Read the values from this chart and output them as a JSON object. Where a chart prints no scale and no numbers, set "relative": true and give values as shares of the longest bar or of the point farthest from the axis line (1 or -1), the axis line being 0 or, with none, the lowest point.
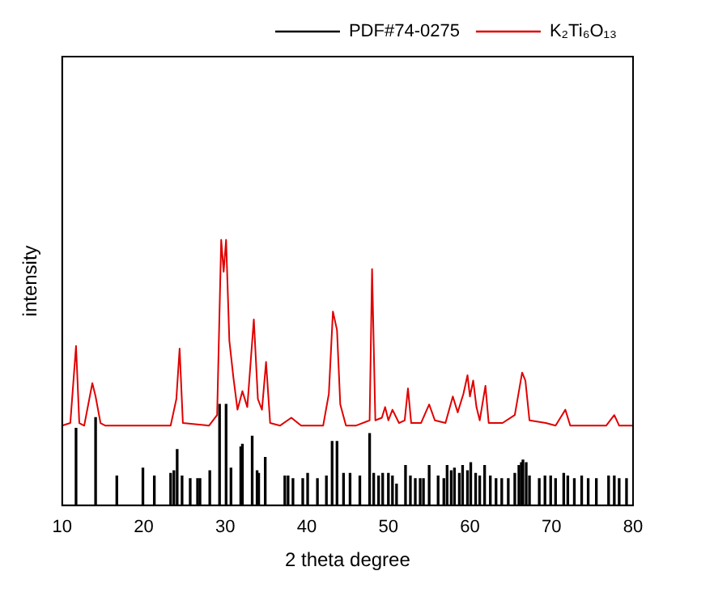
{
  "chart_data": {
    "type": "line",
    "xlabel": "2 theta degree",
    "ylabel": "intensity",
    "relative": true,
    "xlim": [
      10,
      80
    ],
    "xticks": [
      10,
      20,
      30,
      40,
      50,
      60,
      70,
      80
    ],
    "grid": false,
    "legend": "top right",
    "marker": "none",
    "series": [
      {
        "name": "PDF#74-0275",
        "type": "bar",
        "color": "#000000",
        "x": [
          11.7,
          14.1,
          16.7,
          19.9,
          21.3,
          23.3,
          23.7,
          24.1,
          24.7,
          25.7,
          26.6,
          26.9,
          28.1,
          29.3,
          30.1,
          30.7,
          31.9,
          32.1,
          33.3,
          33.9,
          34.1,
          34.9,
          37.3,
          37.7,
          38.3,
          39.5,
          40.1,
          41.3,
          42.4,
          43.1,
          43.7,
          44.5,
          45.3,
          46.5,
          47.7,
          48.2,
          48.8,
          49.3,
          50.0,
          50.5,
          51.0,
          52.1,
          52.7,
          53.3,
          53.9,
          54.3,
          55.0,
          56.1,
          56.8,
          57.2,
          57.7,
          58.1,
          58.7,
          59.1,
          59.7,
          60.1,
          60.7,
          61.2,
          61.8,
          62.5,
          63.2,
          63.9,
          64.7,
          65.5,
          66.0,
          66.3,
          66.5,
          66.9,
          67.3,
          68.5,
          69.2,
          69.9,
          70.5,
          71.5,
          72.0,
          72.8,
          73.7,
          74.5,
          75.5,
          77.0,
          77.7,
          78.3,
          79.2
        ],
        "values": [
          0.29,
          0.33,
          0.11,
          0.14,
          0.11,
          0.12,
          0.13,
          0.21,
          0.11,
          0.1,
          0.1,
          0.1,
          0.13,
          0.38,
          0.38,
          0.14,
          0.22,
          0.23,
          0.26,
          0.13,
          0.12,
          0.18,
          0.11,
          0.11,
          0.1,
          0.1,
          0.12,
          0.1,
          0.11,
          0.24,
          0.24,
          0.12,
          0.12,
          0.11,
          0.27,
          0.12,
          0.11,
          0.12,
          0.12,
          0.11,
          0.08,
          0.15,
          0.11,
          0.1,
          0.1,
          0.1,
          0.15,
          0.11,
          0.1,
          0.15,
          0.13,
          0.14,
          0.12,
          0.15,
          0.13,
          0.16,
          0.12,
          0.11,
          0.15,
          0.11,
          0.1,
          0.1,
          0.1,
          0.12,
          0.15,
          0.16,
          0.17,
          0.16,
          0.11,
          0.1,
          0.11,
          0.11,
          0.1,
          0.12,
          0.11,
          0.1,
          0.11,
          0.1,
          0.1,
          0.11,
          0.11,
          0.1,
          0.1
        ]
      },
      {
        "name": "K₂Ti₆O₁₃",
        "color": "#e00000",
        "x": [
          10.0,
          11.0,
          11.7,
          12.1,
          12.7,
          13.7,
          14.1,
          14.7,
          15.3,
          20.0,
          23.3,
          24.0,
          24.4,
          24.8,
          28.0,
          29.0,
          29.5,
          29.8,
          30.1,
          30.5,
          31.0,
          31.5,
          32.1,
          32.7,
          33.5,
          34.0,
          34.5,
          35.0,
          35.5,
          36.7,
          38.1,
          39.3,
          42.0,
          42.7,
          43.2,
          43.7,
          44.1,
          44.8,
          46.0,
          47.7,
          48.0,
          48.4,
          49.2,
          49.6,
          50.0,
          50.5,
          51.3,
          52.0,
          52.4,
          52.8,
          54.0,
          55.0,
          55.7,
          57.0,
          57.9,
          58.5,
          59.2,
          59.7,
          60.0,
          60.4,
          60.8,
          61.2,
          61.9,
          62.3,
          64.0,
          65.5,
          66.4,
          66.8,
          67.3,
          69.3,
          70.5,
          71.7,
          72.3,
          74.7,
          76.7,
          77.7,
          78.3,
          80.0
        ],
        "values": [
          0.3,
          0.31,
          0.6,
          0.31,
          0.3,
          0.46,
          0.41,
          0.31,
          0.3,
          0.3,
          0.3,
          0.4,
          0.59,
          0.31,
          0.3,
          0.34,
          1.0,
          0.88,
          1.0,
          0.62,
          0.48,
          0.36,
          0.43,
          0.37,
          0.7,
          0.4,
          0.36,
          0.54,
          0.31,
          0.3,
          0.33,
          0.3,
          0.3,
          0.42,
          0.73,
          0.66,
          0.38,
          0.3,
          0.3,
          0.32,
          0.89,
          0.32,
          0.33,
          0.37,
          0.32,
          0.36,
          0.31,
          0.32,
          0.44,
          0.31,
          0.31,
          0.38,
          0.32,
          0.31,
          0.41,
          0.35,
          0.42,
          0.49,
          0.41,
          0.47,
          0.37,
          0.32,
          0.45,
          0.31,
          0.31,
          0.34,
          0.5,
          0.47,
          0.32,
          0.31,
          0.3,
          0.36,
          0.3,
          0.3,
          0.3,
          0.34,
          0.3,
          0.3
        ]
      }
    ]
  }
}
